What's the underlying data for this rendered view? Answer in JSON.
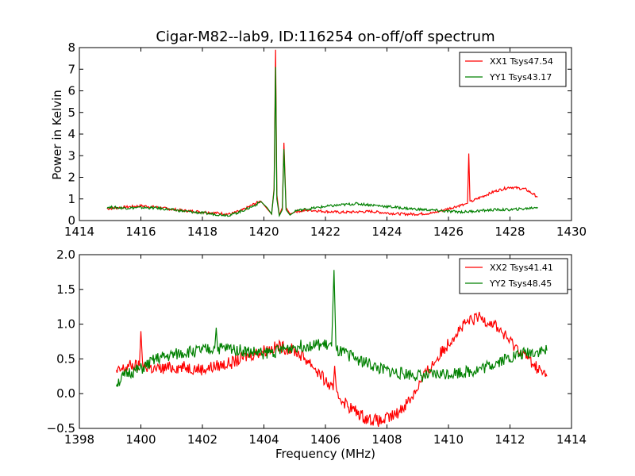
{
  "chart_data": [
    {
      "type": "line",
      "title": "Cigar-M82--lab9, ID:116254 on-off/off spectrum",
      "xlabel": "",
      "ylabel": "Power in Kelvin",
      "xlim": [
        1414,
        1430
      ],
      "ylim": [
        0,
        8
      ],
      "xticks": [
        "1414",
        "1416",
        "1418",
        "1420",
        "1422",
        "1424",
        "1426",
        "1428",
        "1430"
      ],
      "yticks": [
        "0",
        "1",
        "2",
        "3",
        "4",
        "5",
        "6",
        "7",
        "8"
      ],
      "grid": false,
      "legend_position": "top-right",
      "series": [
        {
          "name": "XX1 Tsys47.54",
          "color": "#ff0000",
          "points": [
            [
              1414.9,
              0.55
            ],
            [
              1415.5,
              0.62
            ],
            [
              1416.0,
              0.68
            ],
            [
              1416.5,
              0.62
            ],
            [
              1417.0,
              0.52
            ],
            [
              1417.5,
              0.45
            ],
            [
              1418.0,
              0.4
            ],
            [
              1418.5,
              0.34
            ],
            [
              1418.9,
              0.3
            ],
            [
              1419.3,
              0.48
            ],
            [
              1419.7,
              0.78
            ],
            [
              1419.9,
              0.9
            ],
            [
              1420.1,
              0.55
            ],
            [
              1420.25,
              0.3
            ],
            [
              1420.33,
              1.5
            ],
            [
              1420.38,
              7.9
            ],
            [
              1420.42,
              1.2
            ],
            [
              1420.5,
              0.25
            ],
            [
              1420.6,
              0.6
            ],
            [
              1420.65,
              3.6
            ],
            [
              1420.72,
              0.6
            ],
            [
              1420.85,
              0.3
            ],
            [
              1421.0,
              0.42
            ],
            [
              1421.5,
              0.48
            ],
            [
              1422.0,
              0.42
            ],
            [
              1422.5,
              0.38
            ],
            [
              1423.0,
              0.4
            ],
            [
              1423.5,
              0.42
            ],
            [
              1424.0,
              0.35
            ],
            [
              1424.5,
              0.3
            ],
            [
              1425.0,
              0.3
            ],
            [
              1425.5,
              0.35
            ],
            [
              1426.0,
              0.55
            ],
            [
              1426.5,
              0.75
            ],
            [
              1426.62,
              0.8
            ],
            [
              1426.66,
              3.1
            ],
            [
              1426.7,
              0.85
            ],
            [
              1427.0,
              1.05
            ],
            [
              1427.5,
              1.35
            ],
            [
              1428.0,
              1.55
            ],
            [
              1428.5,
              1.45
            ],
            [
              1428.9,
              1.1
            ]
          ]
        },
        {
          "name": "YY1 Tsys43.17",
          "color": "#008000",
          "points": [
            [
              1414.9,
              0.62
            ],
            [
              1415.5,
              0.58
            ],
            [
              1416.0,
              0.6
            ],
            [
              1416.5,
              0.58
            ],
            [
              1417.0,
              0.5
            ],
            [
              1417.5,
              0.42
            ],
            [
              1418.0,
              0.35
            ],
            [
              1418.5,
              0.28
            ],
            [
              1418.9,
              0.25
            ],
            [
              1419.3,
              0.45
            ],
            [
              1419.7,
              0.7
            ],
            [
              1419.9,
              0.88
            ],
            [
              1420.1,
              0.6
            ],
            [
              1420.25,
              0.3
            ],
            [
              1420.33,
              1.4
            ],
            [
              1420.38,
              7.1
            ],
            [
              1420.42,
              1.0
            ],
            [
              1420.5,
              0.22
            ],
            [
              1420.6,
              0.5
            ],
            [
              1420.65,
              3.3
            ],
            [
              1420.72,
              0.5
            ],
            [
              1420.85,
              0.25
            ],
            [
              1421.0,
              0.45
            ],
            [
              1421.5,
              0.55
            ],
            [
              1422.0,
              0.65
            ],
            [
              1422.5,
              0.72
            ],
            [
              1423.0,
              0.78
            ],
            [
              1423.5,
              0.72
            ],
            [
              1424.0,
              0.65
            ],
            [
              1424.5,
              0.58
            ],
            [
              1425.0,
              0.52
            ],
            [
              1425.5,
              0.48
            ],
            [
              1426.0,
              0.42
            ],
            [
              1426.5,
              0.4
            ],
            [
              1427.0,
              0.45
            ],
            [
              1427.5,
              0.5
            ],
            [
              1428.0,
              0.5
            ],
            [
              1428.5,
              0.55
            ],
            [
              1428.9,
              0.62
            ]
          ]
        }
      ]
    },
    {
      "type": "line",
      "title": "",
      "xlabel": "Frequency (MHz)",
      "ylabel": "",
      "xlim": [
        1398,
        1414
      ],
      "ylim": [
        -0.5,
        2.0
      ],
      "xticks": [
        "1398",
        "1400",
        "1402",
        "1404",
        "1406",
        "1408",
        "1410",
        "1412",
        "1414"
      ],
      "yticks": [
        "−0.5",
        "0.0",
        "0.5",
        "1.0",
        "1.5",
        "2.0"
      ],
      "grid": false,
      "legend_position": "top-right",
      "series": [
        {
          "name": "XX2 Tsys41.41",
          "color": "#ff0000",
          "points": [
            [
              1399.2,
              0.3
            ],
            [
              1399.6,
              0.4
            ],
            [
              1399.95,
              0.4
            ],
            [
              1400.0,
              0.9
            ],
            [
              1400.05,
              0.4
            ],
            [
              1400.5,
              0.35
            ],
            [
              1401.0,
              0.38
            ],
            [
              1401.5,
              0.38
            ],
            [
              1402.0,
              0.35
            ],
            [
              1402.5,
              0.4
            ],
            [
              1403.0,
              0.45
            ],
            [
              1403.5,
              0.55
            ],
            [
              1404.0,
              0.62
            ],
            [
              1404.5,
              0.68
            ],
            [
              1405.0,
              0.62
            ],
            [
              1405.5,
              0.45
            ],
            [
              1406.0,
              0.18
            ],
            [
              1406.25,
              0.05
            ],
            [
              1406.3,
              0.4
            ],
            [
              1406.35,
              0.0
            ],
            [
              1406.8,
              -0.2
            ],
            [
              1407.3,
              -0.35
            ],
            [
              1407.8,
              -0.4
            ],
            [
              1408.3,
              -0.3
            ],
            [
              1408.8,
              -0.05
            ],
            [
              1409.2,
              0.25
            ],
            [
              1409.7,
              0.55
            ],
            [
              1410.2,
              0.85
            ],
            [
              1410.6,
              1.02
            ],
            [
              1411.0,
              1.1
            ],
            [
              1411.5,
              1.0
            ],
            [
              1412.0,
              0.75
            ],
            [
              1412.5,
              0.55
            ],
            [
              1413.0,
              0.32
            ],
            [
              1413.2,
              0.25
            ]
          ]
        },
        {
          "name": "YY2 Tsys48.45",
          "color": "#008000",
          "points": [
            [
              1399.2,
              0.15
            ],
            [
              1399.6,
              0.3
            ],
            [
              1400.0,
              0.35
            ],
            [
              1400.5,
              0.5
            ],
            [
              1401.0,
              0.55
            ],
            [
              1401.5,
              0.6
            ],
            [
              1402.0,
              0.62
            ],
            [
              1402.4,
              0.65
            ],
            [
              1402.45,
              0.95
            ],
            [
              1402.5,
              0.65
            ],
            [
              1403.0,
              0.65
            ],
            [
              1403.5,
              0.6
            ],
            [
              1404.0,
              0.58
            ],
            [
              1404.5,
              0.62
            ],
            [
              1405.0,
              0.68
            ],
            [
              1405.5,
              0.7
            ],
            [
              1406.0,
              0.7
            ],
            [
              1406.2,
              0.68
            ],
            [
              1406.28,
              1.78
            ],
            [
              1406.34,
              0.62
            ],
            [
              1406.8,
              0.55
            ],
            [
              1407.3,
              0.45
            ],
            [
              1407.8,
              0.35
            ],
            [
              1408.3,
              0.3
            ],
            [
              1408.8,
              0.28
            ],
            [
              1409.2,
              0.25
            ],
            [
              1409.7,
              0.28
            ],
            [
              1410.2,
              0.3
            ],
            [
              1410.7,
              0.32
            ],
            [
              1411.2,
              0.38
            ],
            [
              1411.7,
              0.48
            ],
            [
              1412.2,
              0.55
            ],
            [
              1412.7,
              0.6
            ],
            [
              1413.2,
              0.62
            ]
          ]
        }
      ]
    }
  ]
}
